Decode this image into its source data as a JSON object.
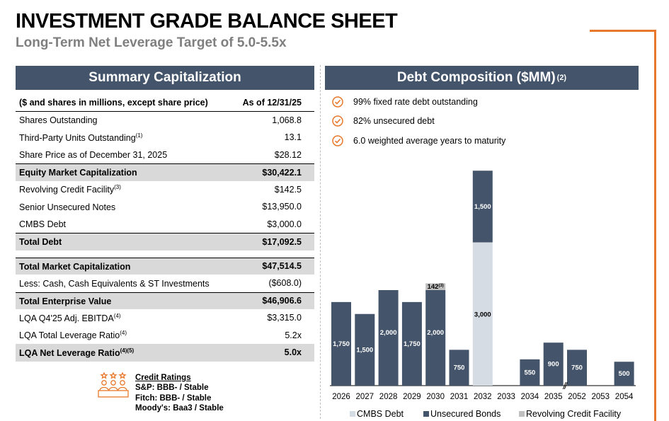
{
  "header": {
    "title": "INVESTMENT GRADE BALANCE SHEET",
    "subtitle": "Long-Term Net Leverage Target of 5.0-5.5x"
  },
  "summary": {
    "title": "Summary Capitalization",
    "header_label": "($ and shares in millions, except share price)",
    "header_value": "As of 12/31/25",
    "rows": [
      {
        "label": "Shares Outstanding",
        "sup": "",
        "value": "1,068.8"
      },
      {
        "label": "Third-Party Units Outstanding",
        "sup": "(1)",
        "value": "13.1"
      },
      {
        "label": "Share Price as of December 31, 2025",
        "sup": "",
        "value": "$28.12"
      },
      {
        "label": "Equity Market Capitalization",
        "sup": "",
        "value": "$30,422.1"
      },
      {
        "label": "Revolving Credit Facility",
        "sup": "(3)",
        "value": "$142.5"
      },
      {
        "label": "Senior Unsecured Notes",
        "sup": "",
        "value": "$13,950.0"
      },
      {
        "label": "CMBS Debt",
        "sup": "",
        "value": "$3,000.0"
      },
      {
        "label": "Total Debt",
        "sup": "",
        "value": "$17,092.5"
      },
      {
        "label": "Total Market Capitalization",
        "sup": "",
        "value": "$47,514.5"
      },
      {
        "label": "Less: Cash, Cash Equivalents & ST Investments",
        "sup": "",
        "value": "($608.0)"
      },
      {
        "label": "Total Enterprise Value",
        "sup": "",
        "value": "$46,906.6"
      },
      {
        "label": "LQA Q4'25 Adj. EBITDA",
        "sup": "(4)",
        "value": "$3,315.0"
      },
      {
        "label": "LQA Total Leverage Ratio",
        "sup": "(4)",
        "value": "5.2x"
      },
      {
        "label": "LQA Net Leverage Ratio",
        "sup": "(4)(5)",
        "value": "5.0x"
      }
    ]
  },
  "ratings": {
    "title": "Credit Ratings",
    "lines": [
      "S&P: BBB- / Stable",
      "Fitch: BBB- / Stable",
      "Moody's: Baa3 / Stable"
    ],
    "icon": "people-stars-icon"
  },
  "debt": {
    "title": "Debt Composition ($MM)",
    "title_sup": "(2)",
    "bullets": [
      "99% fixed rate debt outstanding",
      "82% unsecured debt",
      "6.0 weighted average years to maturity"
    ],
    "bullet_icon": "check-circle-icon"
  },
  "colors": {
    "header_bg": "#44546a",
    "unsecured": "#44546a",
    "cmbs": "#d6dce4",
    "revolver": "#bfbfbf",
    "accent": "#e8782c",
    "shade": "#d9d9d9"
  },
  "chart_data": {
    "type": "bar",
    "stacked": true,
    "categories": [
      "2026",
      "2027",
      "2028",
      "2029",
      "2030",
      "2031",
      "2032",
      "2033",
      "2034",
      "2035",
      "2052",
      "2053",
      "2054"
    ],
    "series": [
      {
        "name": "CMBS Debt",
        "values": [
          0,
          0,
          0,
          0,
          0,
          0,
          3000,
          0,
          0,
          0,
          0,
          0,
          0
        ]
      },
      {
        "name": "Unsecured Bonds",
        "values": [
          1750,
          1500,
          2000,
          1750,
          2000,
          750,
          1500,
          0,
          550,
          900,
          750,
          0,
          500
        ]
      },
      {
        "name": "Revolving Credit Facility",
        "values": [
          0,
          0,
          0,
          0,
          142,
          0,
          0,
          0,
          0,
          0,
          0,
          0,
          0
        ]
      }
    ],
    "value_labels": {
      "Unsecured Bonds": [
        "1,750",
        "1,500",
        "2,000",
        "1,750",
        "2,000",
        "750",
        "1,500",
        "",
        "550",
        "900",
        "750",
        "",
        "500"
      ],
      "CMBS Debt": [
        "",
        "",
        "",
        "",
        "",
        "",
        "3,000",
        "",
        "",
        "",
        "",
        "",
        ""
      ],
      "Revolving Credit Facility": [
        "",
        "",
        "",
        "",
        "142",
        "",
        "",
        "",
        "",
        "",
        "",
        "",
        ""
      ]
    },
    "revolver_label_sup": "(3)",
    "axis_break_after": "2035",
    "legend": [
      "CMBS Debt",
      "Unsecured Bonds",
      "Revolving Credit Facility"
    ],
    "legend_position": "bottom",
    "grid": false
  }
}
